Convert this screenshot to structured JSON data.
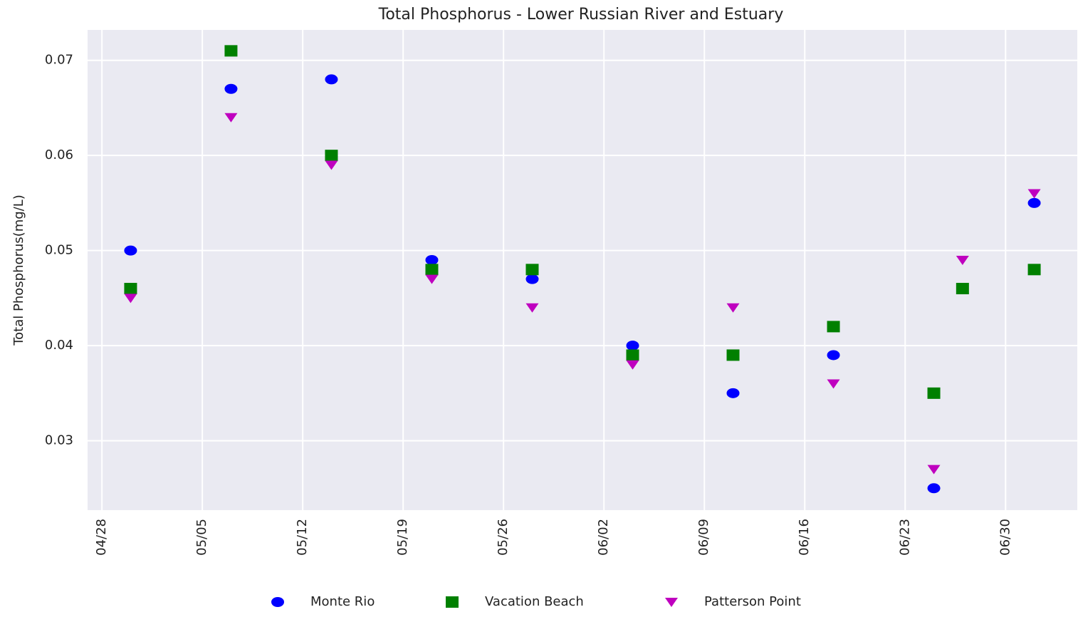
{
  "chart_data": {
    "type": "scatter",
    "title": "Total Phosphorus - Lower Russian River and Estuary",
    "ylabel": "Total Phosphorus(mg/L)",
    "x": [
      "04/30",
      "05/07",
      "05/14",
      "05/21",
      "05/28",
      "06/04",
      "06/11",
      "06/18",
      "06/25",
      "06/27",
      "07/02"
    ],
    "series": [
      {
        "name": "Monte Rio",
        "color": "#0000ff",
        "marker": "circle",
        "values": [
          0.05,
          0.067,
          0.068,
          0.049,
          0.047,
          0.04,
          0.035,
          0.039,
          0.025,
          null,
          0.055
        ]
      },
      {
        "name": "Vacation Beach",
        "color": "#008000",
        "marker": "square",
        "values": [
          0.046,
          0.071,
          0.06,
          0.048,
          0.048,
          0.039,
          0.039,
          0.042,
          0.035,
          0.046,
          0.048
        ]
      },
      {
        "name": "Patterson Point",
        "color": "#bf00bf",
        "marker": "triangle-down",
        "values": [
          0.045,
          0.064,
          0.059,
          0.047,
          0.044,
          0.038,
          0.044,
          0.036,
          0.027,
          0.049,
          0.056
        ]
      }
    ],
    "xlim": [
      "04/27",
      "07/05"
    ],
    "xticks": [
      "04/28",
      "05/05",
      "05/12",
      "05/19",
      "05/26",
      "06/02",
      "06/09",
      "06/16",
      "06/23",
      "06/30"
    ],
    "ylim": [
      0.0227,
      0.0732
    ],
    "yticks": [
      0.03,
      0.04,
      0.05,
      0.06,
      0.07
    ],
    "grid": true,
    "legend": "lower center"
  }
}
